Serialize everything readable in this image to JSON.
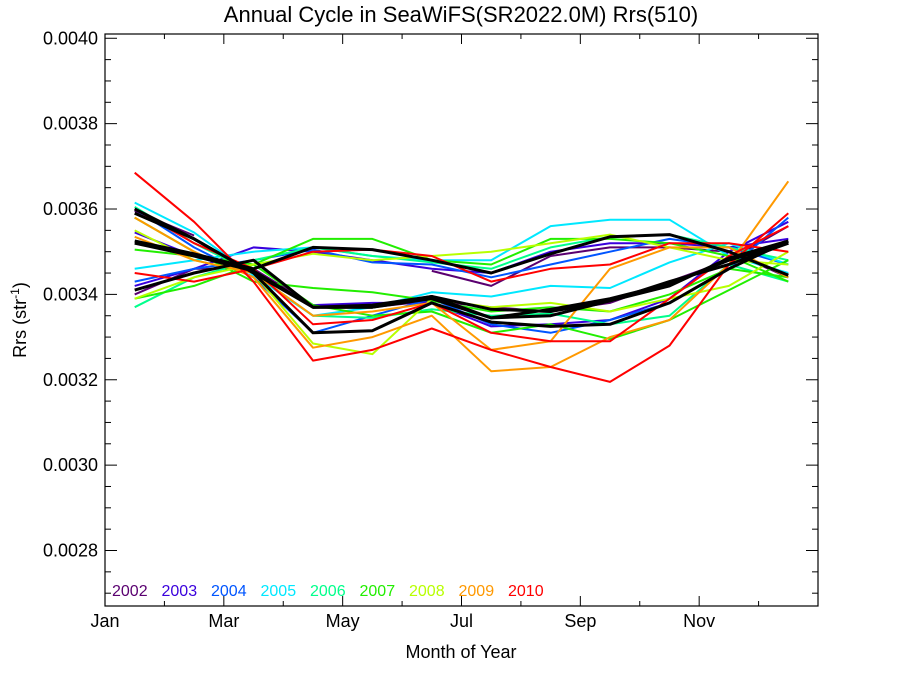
{
  "chart_data": {
    "type": "line",
    "title": "Annual Cycle in SeaWiFS(SR2022.0M) Rrs(510)",
    "xlabel": "Month of Year",
    "ylabel_main": "Rrs (str",
    "ylabel_sup": "-1",
    "ylabel_tail": ")",
    "xlim": [
      0,
      12
    ],
    "ylim": [
      0.00267,
      0.00401
    ],
    "x_ticks": [
      {
        "value": 0,
        "label": "Jan"
      },
      {
        "value": 2,
        "label": "Mar"
      },
      {
        "value": 4,
        "label": "May"
      },
      {
        "value": 6,
        "label": "Jul"
      },
      {
        "value": 8,
        "label": "Sep"
      },
      {
        "value": 10,
        "label": "Nov"
      }
    ],
    "y_ticks": [
      {
        "value": 0.0028,
        "label": "0.0028"
      },
      {
        "value": 0.003,
        "label": "0.0030"
      },
      {
        "value": 0.0032,
        "label": "0.0032"
      },
      {
        "value": 0.0034,
        "label": "0.0034"
      },
      {
        "value": 0.0036,
        "label": "0.0036"
      },
      {
        "value": 0.0038,
        "label": "0.0038"
      },
      {
        "value": 0.004,
        "label": "0.0040"
      }
    ],
    "legend": [
      {
        "label": "2002",
        "color": "#5a0070"
      },
      {
        "label": "2003",
        "color": "#3a00dd"
      },
      {
        "label": "2004",
        "color": "#0055ff"
      },
      {
        "label": "2005",
        "color": "#00e8ff"
      },
      {
        "label": "2006",
        "color": "#00ff8c"
      },
      {
        "label": "2007",
        "color": "#22ee00"
      },
      {
        "label": "2008",
        "color": "#b8ff00"
      },
      {
        "label": "2009",
        "color": "#ff9900"
      },
      {
        "label": "2010",
        "color": "#ff0000"
      }
    ],
    "x": [
      0.5,
      1.5,
      2.5,
      3.5,
      4.5,
      5.5,
      6.5,
      7.5,
      8.5,
      9.5,
      10.5,
      11.5
    ],
    "series": [
      {
        "color": "#5a0070",
        "width": 2,
        "values": [
          0.003595,
          0.003538,
          null,
          null,
          null,
          0.003455,
          0.00342,
          0.00349,
          0.00351,
          0.00351,
          0.0035,
          0.00344
        ]
      },
      {
        "color": "#5a0070",
        "width": 2,
        "values": [
          0.0034,
          0.00346,
          0.00346,
          0.003375,
          0.00337,
          0.003385,
          0.00337,
          0.00336,
          0.00338,
          0.00343,
          0.00348,
          0.00356
        ]
      },
      {
        "color": "#3a00dd",
        "width": 2,
        "values": [
          0.003545,
          0.00349,
          0.00345,
          0.003375,
          0.00338,
          0.00338,
          0.003325,
          0.00333,
          0.00334,
          0.00339,
          0.0035,
          0.00357
        ]
      },
      {
        "color": "#3a00dd",
        "width": 2,
        "values": [
          0.00342,
          0.00346,
          0.00351,
          0.0035,
          0.00348,
          0.00346,
          0.00345,
          0.0035,
          0.00352,
          0.00352,
          0.00351,
          0.00353
        ]
      },
      {
        "color": "#0055ff",
        "width": 2,
        "values": [
          0.0036,
          0.00351,
          0.00344,
          0.00331,
          0.00335,
          0.00339,
          0.00333,
          0.00331,
          0.00334,
          0.00338,
          0.00346,
          0.00358
        ]
      },
      {
        "color": "#0055ff",
        "width": 2,
        "values": [
          0.00343,
          0.00346,
          0.00348,
          0.003505,
          0.003475,
          0.00347,
          0.00344,
          0.00347,
          0.0035,
          0.00353,
          0.00351,
          0.00347
        ]
      },
      {
        "color": "#00e8ff",
        "width": 2,
        "values": [
          0.003615,
          0.003545,
          0.003445,
          0.00335,
          0.00337,
          0.003405,
          0.003395,
          0.00342,
          0.003415,
          0.003475,
          0.00352,
          0.00347
        ]
      },
      {
        "color": "#00e8ff",
        "width": 2,
        "values": [
          0.00346,
          0.00348,
          0.0035,
          0.00351,
          0.00349,
          0.00348,
          0.00348,
          0.00356,
          0.003575,
          0.003575,
          0.00349,
          0.00345
        ]
      },
      {
        "color": "#00ff8c",
        "width": 2,
        "values": [
          0.003605,
          0.00352,
          0.00345,
          0.00335,
          0.003345,
          0.003365,
          0.00335,
          0.003355,
          0.00333,
          0.00335,
          0.00347,
          0.00343
        ]
      },
      {
        "color": "#00ff8c",
        "width": 2,
        "values": [
          0.00337,
          0.00344,
          0.00348,
          0.00351,
          0.00349,
          0.003475,
          0.00346,
          0.00351,
          0.003535,
          0.00354,
          0.00351,
          0.00348
        ]
      },
      {
        "color": "#22ee00",
        "width": 2,
        "values": [
          0.00358,
          0.0035,
          0.00343,
          0.003415,
          0.003405,
          0.003385,
          0.00336,
          0.00337,
          0.00336,
          0.0034,
          0.00346,
          0.00344
        ]
      },
      {
        "color": "#22ee00",
        "width": 2,
        "values": [
          0.003505,
          0.00349,
          0.00347,
          0.00353,
          0.00353,
          0.00348,
          0.00347,
          0.00353,
          0.00353,
          0.00352,
          0.00349,
          0.00343
        ]
      },
      {
        "color": "#22ee00",
        "width": 2,
        "values": [
          0.00339,
          0.00342,
          0.00347,
          0.003375,
          0.00335,
          0.00336,
          0.00331,
          0.00333,
          0.003295,
          0.00334,
          0.00341,
          0.00348
        ]
      },
      {
        "color": "#b8ff00",
        "width": 2,
        "values": [
          0.00355,
          0.00348,
          0.00345,
          0.003285,
          0.00326,
          0.00339,
          0.00337,
          0.00338,
          0.00336,
          0.00339,
          0.00342,
          0.0035
        ]
      },
      {
        "color": "#b8ff00",
        "width": 2,
        "values": [
          0.00339,
          0.00344,
          0.00347,
          0.003495,
          0.00348,
          0.00349,
          0.0035,
          0.00352,
          0.00354,
          0.00351,
          0.00348,
          0.00347
        ]
      },
      {
        "color": "#ff9900",
        "width": 2,
        "values": [
          0.00358,
          0.0035,
          0.00344,
          0.003275,
          0.0033,
          0.00335,
          0.00322,
          0.00323,
          0.0033,
          0.00334,
          0.00347,
          0.003665
        ]
      },
      {
        "color": "#ff9900",
        "width": 2,
        "values": [
          0.003535,
          0.00348,
          0.00345,
          0.00335,
          0.00336,
          0.00338,
          0.00327,
          0.00329,
          0.00346,
          0.00351,
          0.00351,
          0.00344
        ]
      },
      {
        "color": "#ff0000",
        "width": 2,
        "values": [
          0.003685,
          0.00357,
          0.00343,
          0.003245,
          0.00327,
          0.00332,
          0.00327,
          0.00323,
          0.003195,
          0.00328,
          0.00347,
          0.00359
        ]
      },
      {
        "color": "#ff0000",
        "width": 2,
        "values": [
          0.00345,
          0.00343,
          0.00346,
          0.00333,
          0.00334,
          0.00338,
          0.00331,
          0.00329,
          0.00329,
          0.00339,
          0.00349,
          0.00356
        ]
      },
      {
        "color": "#ff0000",
        "width": 2,
        "values": [
          0.0036,
          0.00352,
          0.00346,
          0.0035,
          0.003505,
          0.00349,
          0.00343,
          0.00346,
          0.00347,
          0.00352,
          0.00352,
          0.0035
        ]
      },
      {
        "color": "#000000",
        "width": 3,
        "values": [
          0.003525,
          0.003495,
          0.00346,
          0.00351,
          0.003505,
          0.00348,
          0.00345,
          0.003495,
          0.003535,
          0.00354,
          0.0035,
          0.003445
        ]
      },
      {
        "color": "#000000",
        "width": 3,
        "values": [
          0.0036,
          0.00353,
          0.00345,
          0.00337,
          0.003375,
          0.003395,
          0.003365,
          0.00336,
          0.003385,
          0.00343,
          0.00347,
          0.00352
        ]
      },
      {
        "color": "#000000",
        "width": 3,
        "values": [
          0.00359,
          0.00353,
          0.00345,
          0.00331,
          0.003315,
          0.00338,
          0.003335,
          0.003325,
          0.00333,
          0.00338,
          0.00346,
          0.003525
        ]
      },
      {
        "color": "#000000",
        "width": 3,
        "values": [
          0.00352,
          0.00349,
          0.003455,
          0.00337,
          0.00337,
          0.00339,
          0.003345,
          0.003365,
          0.00339,
          0.003425,
          0.00348,
          0.00352
        ]
      },
      {
        "color": "#000000",
        "width": 3,
        "values": [
          0.00341,
          0.00345,
          0.00348,
          0.00337,
          0.00337,
          0.003395,
          0.003345,
          0.00335,
          0.003385,
          0.00342,
          0.003485,
          0.003525
        ]
      }
    ],
    "grid": false
  }
}
